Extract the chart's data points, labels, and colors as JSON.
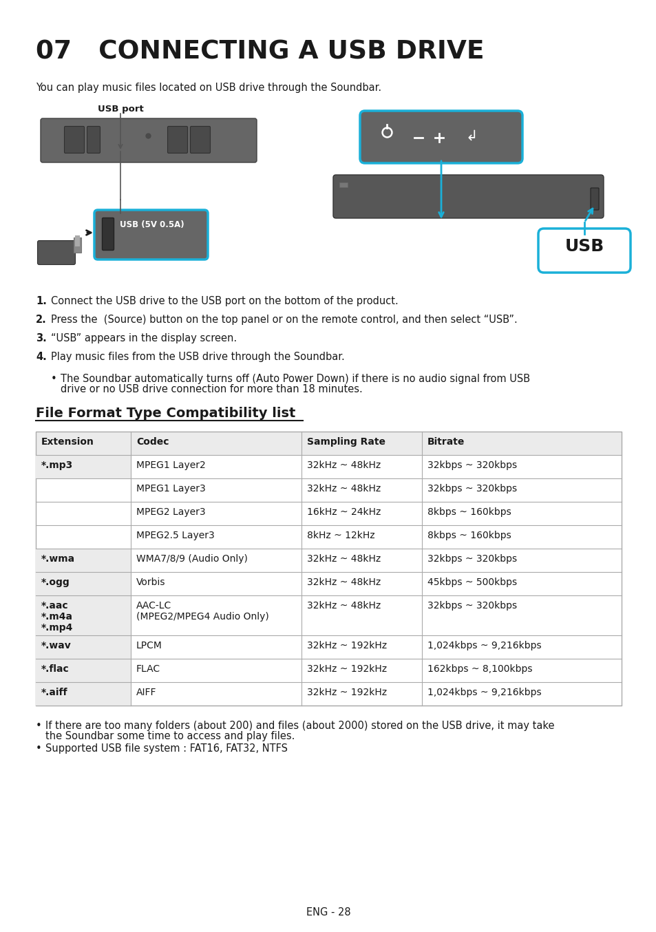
{
  "page_title": "07   CONNECTING A USB DRIVE",
  "subtitle": "You can play music files located on USB drive through the Soundbar.",
  "table_section_title": "File Format Type Compatibility list",
  "table_headers": [
    "Extension",
    "Codec",
    "Sampling Rate",
    "Bitrate"
  ],
  "table_rows": [
    [
      "*.mp3",
      "MPEG1 Layer2",
      "32kHz ~ 48kHz",
      "32kbps ~ 320kbps"
    ],
    [
      "",
      "MPEG1 Layer3",
      "32kHz ~ 48kHz",
      "32kbps ~ 320kbps"
    ],
    [
      "",
      "MPEG2 Layer3",
      "16kHz ~ 24kHz",
      "8kbps ~ 160kbps"
    ],
    [
      "",
      "MPEG2.5 Layer3",
      "8kHz ~ 12kHz",
      "8kbps ~ 160kbps"
    ],
    [
      "*.wma",
      "WMA7/8/9 (Audio Only)",
      "32kHz ~ 48kHz",
      "32kbps ~ 320kbps"
    ],
    [
      "*.ogg",
      "Vorbis",
      "32kHz ~ 48kHz",
      "45kbps ~ 500kbps"
    ],
    [
      "*.aac\n*.m4a\n*.mp4",
      "AAC-LC\n(MPEG2/MPEG4 Audio Only)",
      "32kHz ~ 48kHz",
      "32kbps ~ 320kbps"
    ],
    [
      "*.wav",
      "LPCM",
      "32kHz ~ 192kHz",
      "1,024kbps ~ 9,216kbps"
    ],
    [
      "*.flac",
      "FLAC",
      "32kHz ~ 192kHz",
      "162kbps ~ 8,100kbps"
    ],
    [
      "*.aiff",
      "AIFF",
      "32kHz ~ 192kHz",
      "1,024kbps ~ 9,216kbps"
    ]
  ],
  "inst1": "Connect the USB drive to the USB port on the bottom of the product.",
  "inst2": "Press the  (Source) button on the top panel or on the remote control, and then select “USB”.",
  "inst2_bold": "(Source)",
  "inst3": "“USB” appears in the display screen.",
  "inst4": "Play music files from the USB drive through the Soundbar.",
  "bullet_line1": "The Soundbar automatically turns off (Auto Power Down) if there is no audio signal from USB",
  "bullet_line2": "drive or no USB drive connection for more than 18 minutes.",
  "footer_bullet1_line1": "If there are too many folders (about 200) and files (about 2000) stored on the USB drive, it may take",
  "footer_bullet1_line2": "the Soundbar some time to access and play files.",
  "footer_bullet2": "Supported USB file system : FAT16, FAT32, NTFS",
  "page_number": "ENG - 28",
  "bg_color": "#ffffff",
  "text_color": "#1a1a1a",
  "header_bg": "#ebebeb",
  "table_border": "#aaaaaa",
  "cyan_color": "#1ab0d8",
  "dark_gray": "#5a5a5a",
  "mid_gray": "#888888",
  "usb_label": "USB port",
  "usb_port_label": "USB (5V 0.5A)",
  "usb_callout_text": "USB"
}
